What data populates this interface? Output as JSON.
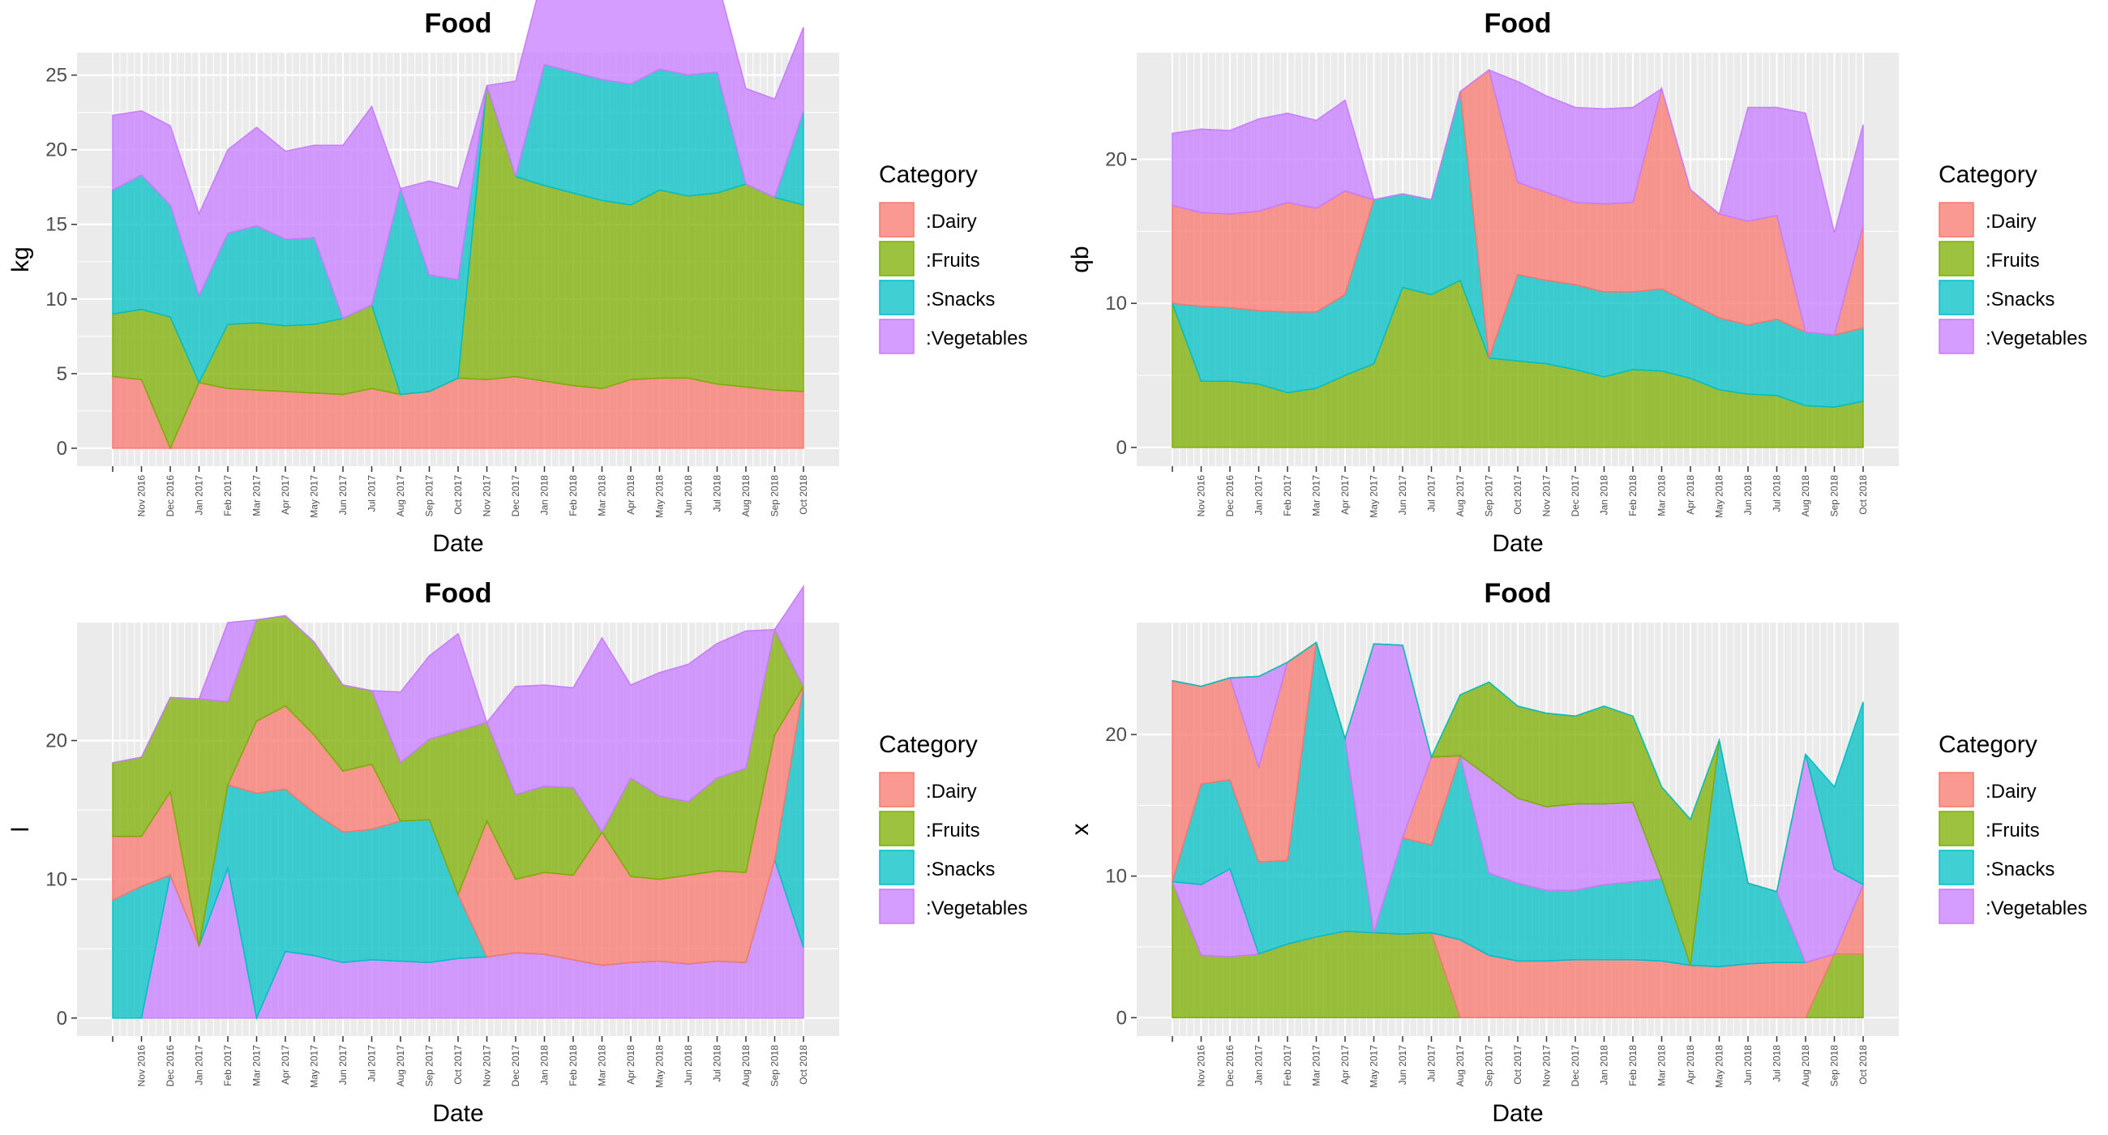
{
  "chart_data": [
    {
      "type": "area",
      "title": "Food",
      "xlabel": "Date",
      "ylabel": "kg",
      "ylim": [
        -1.2,
        26.5
      ],
      "yticks": [
        0,
        5,
        10,
        15,
        20,
        25
      ],
      "legend": {
        "title": "Category",
        "position": "right"
      },
      "categories": [
        "",
        "Nov 2016",
        "Dec 2016",
        "Jan 2017",
        "Feb 2017",
        "Mar 2017",
        "Apr 2017",
        "May 2017",
        "Jun 2017",
        "Jul 2017",
        "Aug 2017",
        "Sep 2017",
        "Oct 2017",
        "Nov 2017",
        "Dec 2017",
        "Jan 2018",
        "Feb 2018",
        "Mar 2018",
        "Apr 2018",
        "May 2018",
        "Jun 2018",
        "Jul 2018",
        "Aug 2018",
        "Sep 2018",
        "Oct 2018"
      ],
      "series": [
        {
          "name": ":Dairy",
          "color": "#F8766D",
          "values": [
            4.8,
            4.6,
            0,
            4.4,
            4.0,
            3.9,
            3.8,
            3.7,
            3.6,
            4.0,
            3.6,
            3.8,
            4.7,
            4.6,
            4.8,
            4.5,
            4.2,
            4.0,
            4.6,
            4.7,
            4.7,
            4.3,
            4.1,
            3.9,
            3.8
          ]
        },
        {
          "name": ":Fruits",
          "color": "#7CAE00",
          "values": [
            4.2,
            4.7,
            8.8,
            0,
            4.3,
            4.5,
            4.4,
            4.6,
            5.1,
            5.6,
            0,
            0,
            0,
            19.7,
            13.4,
            13.1,
            12.9,
            12.6,
            11.7,
            12.6,
            12.2,
            12.8,
            13.6,
            12.9,
            12.5
          ]
        },
        {
          "name": ":Snacks",
          "color": "#00BFC4",
          "values": [
            8.3,
            9.0,
            7.5,
            5.8,
            6.1,
            6.5,
            5.8,
            5.8,
            0,
            0,
            13.8,
            7.8,
            6.6,
            0,
            0,
            8.1,
            8.1,
            8.1,
            8.1,
            8.1,
            8.1,
            8.1,
            0,
            0,
            6.3
          ]
        },
        {
          "name": ":Vegetables",
          "color": "#C77CFF",
          "values": [
            5.0,
            4.3,
            5.3,
            5.5,
            5.6,
            6.6,
            5.9,
            6.2,
            11.6,
            13.3,
            0,
            6.3,
            6.1,
            0,
            6.4,
            6.4,
            6.2,
            5.6,
            6.1,
            5.9,
            6.2,
            6.2,
            6.4,
            6.6,
            5.6
          ]
        }
      ]
    },
    {
      "type": "area",
      "title": "Food",
      "xlabel": "Date",
      "ylabel": "qb",
      "ylim": [
        -1.3,
        27.4
      ],
      "yticks": [
        0,
        10,
        20
      ],
      "legend": {
        "title": "Category",
        "position": "right"
      },
      "categories": [
        "",
        "Nov 2016",
        "Dec 2016",
        "Jan 2017",
        "Feb 2017",
        "Mar 2017",
        "Apr 2017",
        "May 2017",
        "Jun 2017",
        "Jul 2017",
        "Aug 2017",
        "Sep 2017",
        "Oct 2017",
        "Nov 2017",
        "Dec 2017",
        "Jan 2018",
        "Feb 2018",
        "Mar 2018",
        "Apr 2018",
        "May 2018",
        "Jun 2018",
        "Jul 2018",
        "Aug 2018",
        "Sep 2018",
        "Oct 2018"
      ],
      "series": [
        {
          "name": ":Fruits",
          "color": "#7CAE00",
          "values": [
            10.0,
            4.6,
            4.6,
            4.4,
            3.8,
            4.1,
            5.0,
            5.8,
            11.1,
            10.6,
            11.6,
            6.2,
            6.0,
            5.8,
            5.4,
            4.9,
            5.4,
            5.3,
            4.8,
            4.0,
            3.7,
            3.6,
            2.9,
            2.8,
            3.2
          ]
        },
        {
          "name": ":Snacks",
          "color": "#00BFC4",
          "values": [
            0,
            5.2,
            5.1,
            5.1,
            5.6,
            5.3,
            5.6,
            11.4,
            6.5,
            6.6,
            13.1,
            0,
            6.0,
            5.8,
            5.9,
            5.9,
            5.4,
            5.7,
            5.2,
            5.0,
            4.8,
            5.3,
            5.1,
            5.0,
            5.1
          ]
        },
        {
          "name": ":Dairy",
          "color": "#F8766D",
          "values": [
            6.8,
            6.5,
            6.5,
            6.9,
            7.6,
            7.2,
            7.2,
            0,
            0,
            0,
            0,
            20.0,
            6.4,
            6.1,
            5.7,
            6.1,
            6.2,
            13.9,
            7.9,
            7.2,
            7.2,
            7.2,
            0,
            0,
            7.1
          ]
        },
        {
          "name": ":Vegetables",
          "color": "#C77CFF",
          "values": [
            5.0,
            5.8,
            5.8,
            6.4,
            6.2,
            6.1,
            6.3,
            0,
            0,
            0,
            0,
            0,
            7.0,
            6.7,
            6.6,
            6.6,
            6.6,
            0,
            0,
            0,
            7.9,
            7.5,
            15.2,
            7.1,
            7.0
          ]
        }
      ]
    },
    {
      "type": "area",
      "title": "Food",
      "xlabel": "Date",
      "ylabel": "l",
      "ylim": [
        -1.3,
        28.5
      ],
      "yticks": [
        0,
        10,
        20
      ],
      "legend": {
        "title": "Category",
        "position": "right"
      },
      "categories": [
        "",
        "Nov 2016",
        "Dec 2016",
        "Jan 2017",
        "Feb 2017",
        "Mar 2017",
        "Apr 2017",
        "May 2017",
        "Jun 2017",
        "Jul 2017",
        "Aug 2017",
        "Sep 2017",
        "Oct 2017",
        "Nov 2017",
        "Dec 2017",
        "Jan 2018",
        "Feb 2018",
        "Mar 2018",
        "Apr 2018",
        "May 2018",
        "Jun 2018",
        "Jul 2018",
        "Aug 2018",
        "Sep 2018",
        "Oct 2018"
      ],
      "series": [
        {
          "name": ":Vegetables",
          "color": "#C77CFF",
          "values": [
            0,
            0,
            10.3,
            5.2,
            10.8,
            0,
            4.8,
            4.5,
            4.0,
            4.2,
            4.1,
            4.0,
            4.3,
            4.4,
            4.7,
            4.6,
            4.2,
            3.8,
            4.0,
            4.1,
            3.9,
            4.1,
            4.0,
            11.4,
            5.1
          ]
        },
        {
          "name": ":Snacks",
          "color": "#00BFC4",
          "values": [
            8.5,
            9.5,
            0,
            0,
            6.0,
            16.2,
            11.7,
            10.3,
            9.4,
            9.4,
            10.1,
            10.3,
            4.6,
            0,
            0,
            0,
            0,
            0,
            0,
            0,
            0,
            0,
            0,
            0,
            18.8
          ]
        },
        {
          "name": ":Dairy",
          "color": "#F8766D",
          "values": [
            4.6,
            3.6,
            6.0,
            0,
            0,
            5.2,
            6.0,
            5.6,
            4.4,
            4.7,
            0,
            0,
            0,
            9.8,
            5.3,
            5.9,
            6.1,
            9.6,
            6.2,
            5.9,
            6.4,
            6.5,
            6.5,
            9.0,
            0
          ]
        },
        {
          "name": ":Fruits",
          "color": "#7CAE00",
          "values": [
            5.3,
            5.7,
            6.8,
            17.8,
            6.0,
            7.3,
            6.5,
            6.7,
            6.2,
            5.3,
            4.2,
            5.8,
            11.8,
            7.1,
            6.1,
            6.2,
            6.3,
            0,
            7.1,
            6.0,
            5.3,
            6.7,
            7.5,
            7.6,
            0
          ]
        },
        {
          "name": ":Vegetables",
          "color": "#C77CFF",
          "values": [
            0,
            0,
            0,
            0,
            5.7,
            0,
            0,
            0,
            0,
            0,
            5.1,
            6.0,
            7.0,
            0,
            7.8,
            7.3,
            7.2,
            14.0,
            6.7,
            8.9,
            9.9,
            9.7,
            9.9,
            0,
            7.2
          ]
        }
      ]
    },
    {
      "type": "area",
      "title": "Food",
      "xlabel": "Date",
      "ylabel": "x",
      "ylim": [
        -1.3,
        27.9
      ],
      "yticks": [
        0,
        10,
        20
      ],
      "legend": {
        "title": "Category",
        "position": "right"
      },
      "categories": [
        "",
        "Nov 2016",
        "Dec 2016",
        "Jan 2017",
        "Feb 2017",
        "Mar 2017",
        "Apr 2017",
        "May 2017",
        "Jun 2017",
        "Jul 2017",
        "Aug 2017",
        "Sep 2017",
        "Oct 2017",
        "Nov 2017",
        "Dec 2017",
        "Jan 2018",
        "Feb 2018",
        "Mar 2018",
        "Apr 2018",
        "May 2018",
        "Jun 2018",
        "Jul 2018",
        "Aug 2018",
        "Sep 2018",
        "Oct 2018"
      ],
      "series": [
        {
          "name": ":Fruits",
          "color": "#7CAE00",
          "values": [
            9.6,
            4.4,
            4.3,
            4.5,
            5.2,
            5.7,
            6.1,
            6.0,
            5.9,
            6.0,
            0,
            0,
            0,
            0,
            0,
            0,
            0,
            0,
            0,
            0,
            0,
            0,
            0,
            4.5,
            4.5
          ]
        },
        {
          "name": ":Dairy",
          "color": "#F8766D",
          "values": [
            0,
            0,
            0,
            0,
            0,
            0,
            0,
            0,
            0,
            0,
            5.5,
            4.4,
            4.0,
            4.0,
            4.1,
            4.1,
            4.1,
            4.0,
            3.7,
            3.6,
            3.8,
            3.9,
            3.9,
            0,
            4.9
          ]
        },
        {
          "name": ":Vegetables",
          "color": "#C77CFF",
          "values": [
            0,
            5.0,
            6.2,
            0,
            0,
            0,
            0,
            0,
            0,
            0,
            0,
            0,
            0,
            0,
            0,
            0,
            0,
            0,
            0,
            0,
            0,
            0,
            0,
            0,
            0
          ]
        },
        {
          "name": ":Snacks",
          "color": "#00BFC4",
          "values": [
            0,
            7.1,
            6.3,
            6.5,
            5.9,
            20.8,
            13.6,
            0,
            6.8,
            6.2,
            13.0,
            5.8,
            5.5,
            5.0,
            4.9,
            5.3,
            5.5,
            5.8,
            0,
            16.0,
            5.7,
            5.0,
            0,
            0,
            0
          ]
        },
        {
          "name": ":Dairy",
          "color": "#F8766D",
          "values": [
            14.2,
            6.9,
            7.2,
            6.7,
            14.0,
            0,
            0,
            0,
            0,
            6.2,
            0,
            0,
            0,
            0,
            0,
            0,
            0,
            0,
            0,
            0,
            0,
            0,
            0,
            0,
            0
          ]
        },
        {
          "name": ":Vegetables",
          "color": "#C77CFF",
          "values": [
            0,
            0,
            0,
            6.4,
            0,
            0,
            0,
            20.4,
            13.6,
            0,
            0,
            6.8,
            6.0,
            5.9,
            6.1,
            5.7,
            5.6,
            0,
            0,
            0,
            0,
            0,
            14.7,
            6.0,
            0
          ]
        },
        {
          "name": ":Fruits",
          "color": "#7CAE00",
          "values": [
            0,
            0,
            0,
            0,
            0,
            0,
            0,
            0,
            0,
            0,
            4.3,
            6.7,
            6.5,
            6.6,
            6.2,
            6.9,
            6.1,
            6.5,
            10.3,
            0,
            0,
            0,
            0,
            0,
            0
          ]
        },
        {
          "name": ":Snacks",
          "color": "#00BFC4",
          "values": [
            0,
            0,
            0,
            0,
            0,
            0,
            0,
            0,
            0,
            0,
            0,
            0,
            0,
            0,
            0,
            0,
            0,
            0,
            0,
            0,
            0,
            0,
            0,
            5.8,
            12.9
          ]
        }
      ]
    }
  ]
}
